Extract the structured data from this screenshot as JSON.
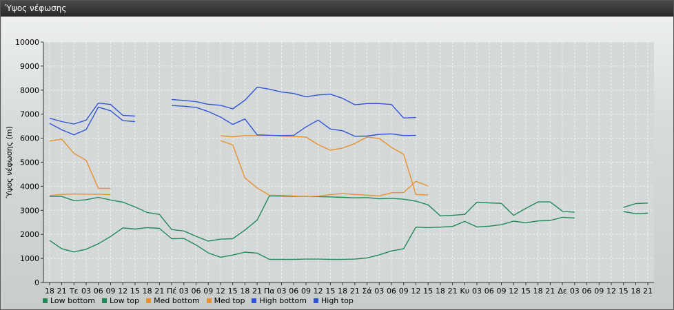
{
  "window": {
    "title": "Ύψος νέφωσης"
  },
  "chart_data": {
    "type": "line",
    "title": "",
    "xlabel": "",
    "ylabel": "Ύψος νέφωσης (m)",
    "ylim": [
      0,
      10000
    ],
    "yticks": [
      0,
      1000,
      2000,
      3000,
      4000,
      5000,
      6000,
      7000,
      8000,
      9000,
      10000
    ],
    "x": [
      "18",
      "21",
      "Τε",
      "03",
      "06",
      "09",
      "12",
      "15",
      "18",
      "21",
      "Πέ",
      "03",
      "06",
      "09",
      "12",
      "15",
      "18",
      "21",
      "Πα",
      "03",
      "06",
      "09",
      "12",
      "15",
      "18",
      "21",
      "Σά",
      "03",
      "06",
      "09",
      "12",
      "15",
      "18",
      "21",
      "Κυ",
      "03",
      "06",
      "09",
      "12",
      "15",
      "18",
      "21",
      "Δε",
      "03",
      "06",
      "09",
      "12",
      "15",
      "18",
      "21"
    ],
    "grid": true,
    "legend_position": "bottom-left",
    "series": [
      {
        "name": "Low bottom",
        "color": "#1f8a57",
        "values": [
          1750,
          1400,
          1270,
          1380,
          1610,
          1910,
          2270,
          2220,
          2280,
          2250,
          1820,
          1830,
          1560,
          1230,
          1050,
          1140,
          1260,
          1220,
          960,
          960,
          960,
          970,
          970,
          960,
          960,
          970,
          1020,
          1150,
          1310,
          1400,
          2300,
          2280,
          2300,
          2330,
          2540,
          2310,
          2340,
          2400,
          2550,
          2480,
          2560,
          2580,
          2710,
          2680,
          null,
          null,
          null,
          2950,
          2860,
          2880
        ]
      },
      {
        "name": "Low top",
        "color": "#1f8a57",
        "values": [
          3580,
          3580,
          3400,
          3440,
          3540,
          3430,
          3340,
          3140,
          2910,
          2830,
          2200,
          2140,
          1920,
          1720,
          1800,
          1820,
          2180,
          2590,
          3600,
          3590,
          3580,
          3580,
          3570,
          3560,
          3540,
          3520,
          3530,
          3480,
          3500,
          3460,
          3380,
          3230,
          2770,
          2790,
          2830,
          3340,
          3310,
          3290,
          2790,
          3080,
          3350,
          3350,
          2960,
          2920,
          null,
          null,
          null,
          3120,
          3280,
          3300
        ]
      },
      {
        "name": "Med bottom",
        "color": "#e8922c",
        "values": [
          5880,
          5960,
          5370,
          5080,
          3910,
          3910,
          null,
          null,
          null,
          null,
          null,
          null,
          null,
          null,
          5900,
          5720,
          4350,
          3930,
          3630,
          3620,
          3600,
          3570,
          3590,
          3650,
          3700,
          3660,
          3630,
          3600,
          3730,
          3740,
          4210,
          4010,
          null,
          null,
          null,
          null,
          null,
          null,
          null,
          null,
          null,
          null,
          null,
          null,
          null,
          null,
          null,
          null,
          null,
          null
        ]
      },
      {
        "name": "Med top",
        "color": "#e8922c",
        "values": [
          3620,
          3660,
          3680,
          3670,
          3670,
          3650,
          null,
          null,
          null,
          null,
          null,
          null,
          null,
          null,
          6100,
          6060,
          6110,
          6110,
          6120,
          6090,
          6070,
          6050,
          5730,
          5500,
          5590,
          5780,
          6050,
          5990,
          5620,
          5330,
          3660,
          3640,
          null,
          null,
          null,
          null,
          null,
          null,
          null,
          null,
          null,
          null,
          null,
          null,
          null,
          null,
          null,
          null,
          null,
          null
        ]
      },
      {
        "name": "High bottom",
        "color": "#2f55d4",
        "values": [
          6620,
          6350,
          6140,
          6360,
          7290,
          7140,
          6730,
          6690,
          null,
          null,
          7360,
          7330,
          7280,
          7110,
          6880,
          6570,
          6800,
          6140,
          6120,
          6110,
          6120,
          6470,
          6750,
          6380,
          6310,
          6080,
          6090,
          6160,
          6180,
          6110,
          6120,
          null,
          null,
          null,
          null,
          null,
          null,
          null,
          null,
          null,
          null,
          null,
          null,
          null,
          null,
          null,
          null,
          null,
          null,
          null
        ]
      },
      {
        "name": "High top",
        "color": "#2f55d4",
        "values": [
          6830,
          6690,
          6590,
          6750,
          7460,
          7400,
          6950,
          6920,
          null,
          null,
          7610,
          7570,
          7520,
          7410,
          7370,
          7220,
          7580,
          8120,
          8040,
          7920,
          7860,
          7720,
          7800,
          7830,
          7660,
          7390,
          7440,
          7440,
          7400,
          6840,
          6860,
          null,
          null,
          null,
          null,
          null,
          null,
          null,
          null,
          null,
          null,
          null,
          null,
          null,
          null,
          null,
          null,
          null,
          null,
          null
        ]
      }
    ]
  }
}
